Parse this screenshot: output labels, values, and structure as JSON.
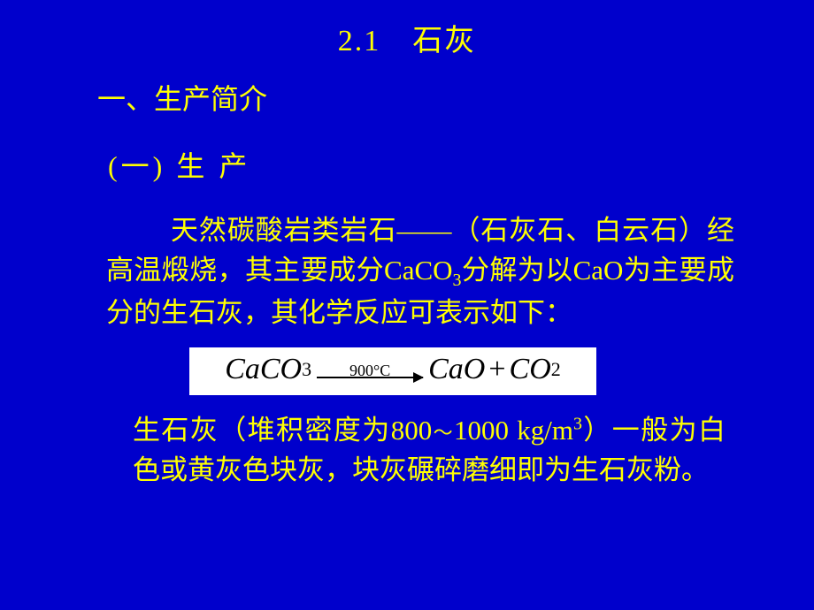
{
  "colors": {
    "background": "#0000cc",
    "text": "#ffff00",
    "formula_bg": "#ffffff",
    "formula_text": "#000000"
  },
  "fonts": {
    "body_family": "SimSun",
    "formula_family": "Times New Roman",
    "title_size_pt": 34,
    "section_size_pt": 32,
    "body_size_pt": 31,
    "formula_size_pt": 34,
    "formula_temp_size_pt": 18
  },
  "title": "2.1　石灰",
  "section1": "一、生产简介",
  "subsection1": "(一) 生 产",
  "para1_pre": "天然碳酸岩类岩石——（石灰石、白云石）经高温煅烧，其主要成分CaCO",
  "para1_sub": "3",
  "para1_post": "分解为以CaO为主要成分的生石灰，其化学反应可表示如下：",
  "formula": {
    "reactant": "CaCO",
    "reactant_sub": "3",
    "temperature": "900°C",
    "product1": "CaO",
    "plus": "+",
    "product2": "CO",
    "product2_sub": "2"
  },
  "para2_a": "生石灰（堆积密度为800",
  "para2_tilde": "～",
  "para2_b": "1000 kg/m",
  "para2_sup": "3",
  "para2_c": "）一般为白色或黄灰色块灰，块灰碾碎磨细即为生石灰粉。"
}
